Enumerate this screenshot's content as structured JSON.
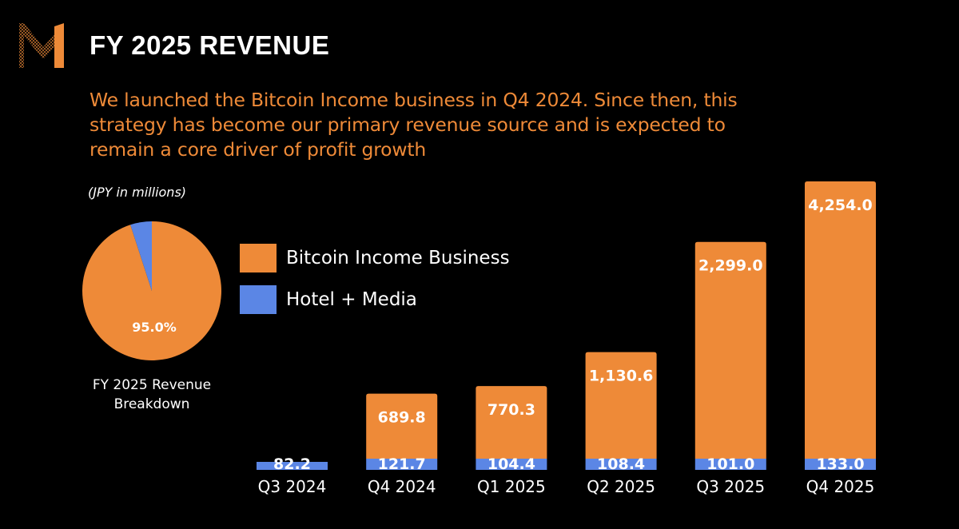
{
  "header": {
    "title": "FY 2025 REVENUE",
    "subtitle": "We launched the Bitcoin Income business in Q4 2024. Since then, this strategy has become our primary revenue source and is expected to remain a core driver of profit growth",
    "logo": "metaplanet-m-logo"
  },
  "colors": {
    "background": "#000000",
    "bitcoin": "#EE8A38",
    "hotel_media": "#5B86E5",
    "text": "#FFFFFF"
  },
  "chart_data": [
    {
      "type": "pie",
      "title": "FY 2025 Revenue Breakdown",
      "units": "(JPY in millions)",
      "slices": [
        {
          "name": "Bitcoin Income Business",
          "value": 95.0,
          "label": "95.0%"
        },
        {
          "name": "Hotel + Media",
          "value": 5.0,
          "label": ""
        }
      ]
    },
    {
      "type": "bar",
      "stacked": true,
      "units": "(JPY in millions)",
      "categories": [
        "Q3 2024",
        "Q4 2024",
        "Q1 2025",
        "Q2 2025",
        "Q3 2025",
        "Q4 2025"
      ],
      "series": [
        {
          "name": "Hotel + Media",
          "values": [
            82.2,
            121.7,
            104.4,
            108.4,
            101.0,
            133.0
          ],
          "labels": [
            "82.2",
            "121.7",
            "104.4",
            "108.4",
            "101.0",
            "133.0"
          ]
        },
        {
          "name": "Bitcoin Income Business",
          "values": [
            0,
            689.8,
            770.3,
            1130.6,
            2299.0,
            4254.0
          ],
          "labels": [
            "",
            "689.8",
            "770.3",
            "1,130.6",
            "2,299.0",
            "4,254.0"
          ]
        }
      ],
      "legend": [
        "Bitcoin Income Business",
        "Hotel + Media"
      ],
      "legend_position": "top-left",
      "grid": false,
      "y_axis_visible": false
    }
  ]
}
